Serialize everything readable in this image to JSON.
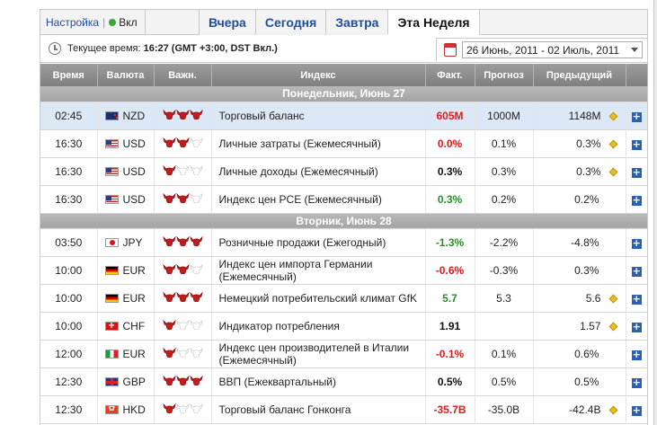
{
  "topbar": {
    "settings_label": "Настройка",
    "status_label": "Вкл",
    "tabs": [
      {
        "label": "Вчера",
        "active": false
      },
      {
        "label": "Сегодня",
        "active": false
      },
      {
        "label": "Завтра",
        "active": false
      },
      {
        "label": "Эта Неделя",
        "active": true
      }
    ]
  },
  "timebar": {
    "current_time_label": "Текущее время:",
    "current_time_value": "16:27 (GMT +3:00, DST Вкл.)",
    "date_range": "26 Июнь, 2011 - 02 Июль, 2011"
  },
  "columns": {
    "time": "Время",
    "currency": "Валюта",
    "importance": "Важн.",
    "event": "Индекс",
    "actual": "Факт.",
    "forecast": "Прогноз",
    "previous": "Предыдущий"
  },
  "days": [
    {
      "label": "Понедельник, Июнь 27",
      "events": [
        {
          "time": "02:45",
          "currency": "NZD",
          "flag": "nzd",
          "importance": 3,
          "event": "Торговый баланс",
          "actual": "605M",
          "actual_color": "neg",
          "forecast": "1000M",
          "previous": "1148M",
          "revised": true,
          "highlight": true
        },
        {
          "time": "16:30",
          "currency": "USD",
          "flag": "usd",
          "importance": 2,
          "event": "Личные затраты (Ежемесячный)",
          "actual": "0.0%",
          "actual_color": "neg",
          "forecast": "0.1%",
          "previous": "0.3%",
          "revised": true,
          "highlight": false
        },
        {
          "time": "16:30",
          "currency": "USD",
          "flag": "usd",
          "importance": 1,
          "event": "Личные доходы (Ежемесячный)",
          "actual": "0.3%",
          "actual_color": "neu",
          "forecast": "0.3%",
          "previous": "0.3%",
          "revised": true,
          "highlight": false
        },
        {
          "time": "16:30",
          "currency": "USD",
          "flag": "usd",
          "importance": 2,
          "event": "Индекс цен PCE (Ежемесячный)",
          "actual": "0.3%",
          "actual_color": "pos",
          "forecast": "0.2%",
          "previous": "0.2%",
          "revised": false,
          "highlight": false
        }
      ]
    },
    {
      "label": "Вторник, Июнь 28",
      "events": [
        {
          "time": "03:50",
          "currency": "JPY",
          "flag": "jpy",
          "importance": 3,
          "event": "Розничные продажи (Ежегодный)",
          "actual": "-1.3%",
          "actual_color": "pos",
          "forecast": "-2.2%",
          "previous": "-4.8%",
          "revised": false,
          "highlight": false
        },
        {
          "time": "10:00",
          "currency": "EUR",
          "flag": "eur-de",
          "importance": 2,
          "event": "Индекс цен импорта Германии (Ежемесячный)",
          "actual": "-0.6%",
          "actual_color": "neg",
          "forecast": "-0.3%",
          "previous": "0.3%",
          "revised": false,
          "highlight": false
        },
        {
          "time": "10:00",
          "currency": "EUR",
          "flag": "eur-de",
          "importance": 3,
          "event": "Немецкий потребительский климат GfK",
          "actual": "5.7",
          "actual_color": "pos",
          "forecast": "5.3",
          "previous": "5.6",
          "revised": true,
          "highlight": false
        },
        {
          "time": "10:00",
          "currency": "CHF",
          "flag": "chf",
          "importance": 1,
          "event": "Индикатор потребления",
          "actual": "1.91",
          "actual_color": "neu",
          "forecast": "",
          "previous": "1.57",
          "revised": true,
          "highlight": false
        },
        {
          "time": "12:00",
          "currency": "EUR",
          "flag": "eur-it",
          "importance": 1,
          "event": "Индекс цен производителей в Италии (Ежемесячный)",
          "actual": "-0.1%",
          "actual_color": "neg",
          "forecast": "0.1%",
          "previous": "0.6%",
          "revised": false,
          "highlight": false
        },
        {
          "time": "12:30",
          "currency": "GBP",
          "flag": "gbp",
          "importance": 3,
          "event": "ВВП (Ежеквартальный)",
          "actual": "0.5%",
          "actual_color": "neu",
          "forecast": "0.5%",
          "previous": "0.5%",
          "revised": false,
          "highlight": false
        },
        {
          "time": "12:30",
          "currency": "HKD",
          "flag": "hkd",
          "importance": 1,
          "event": "Торговый баланс Гонконга",
          "actual": "-35.7B",
          "actual_color": "neg",
          "forecast": "-35.0B",
          "previous": "-42.4B",
          "revised": true,
          "highlight": false
        }
      ]
    }
  ],
  "icons": {
    "bull": "bull-icon",
    "revised": "diamond-icon",
    "expand": "plus-icon"
  },
  "colors": {
    "negative": "#e01b1b",
    "positive": "#2d8a2d",
    "header": "#8c8c8c",
    "highlight_row": "#dde8f6",
    "tab_link": "#1f4e9c"
  }
}
